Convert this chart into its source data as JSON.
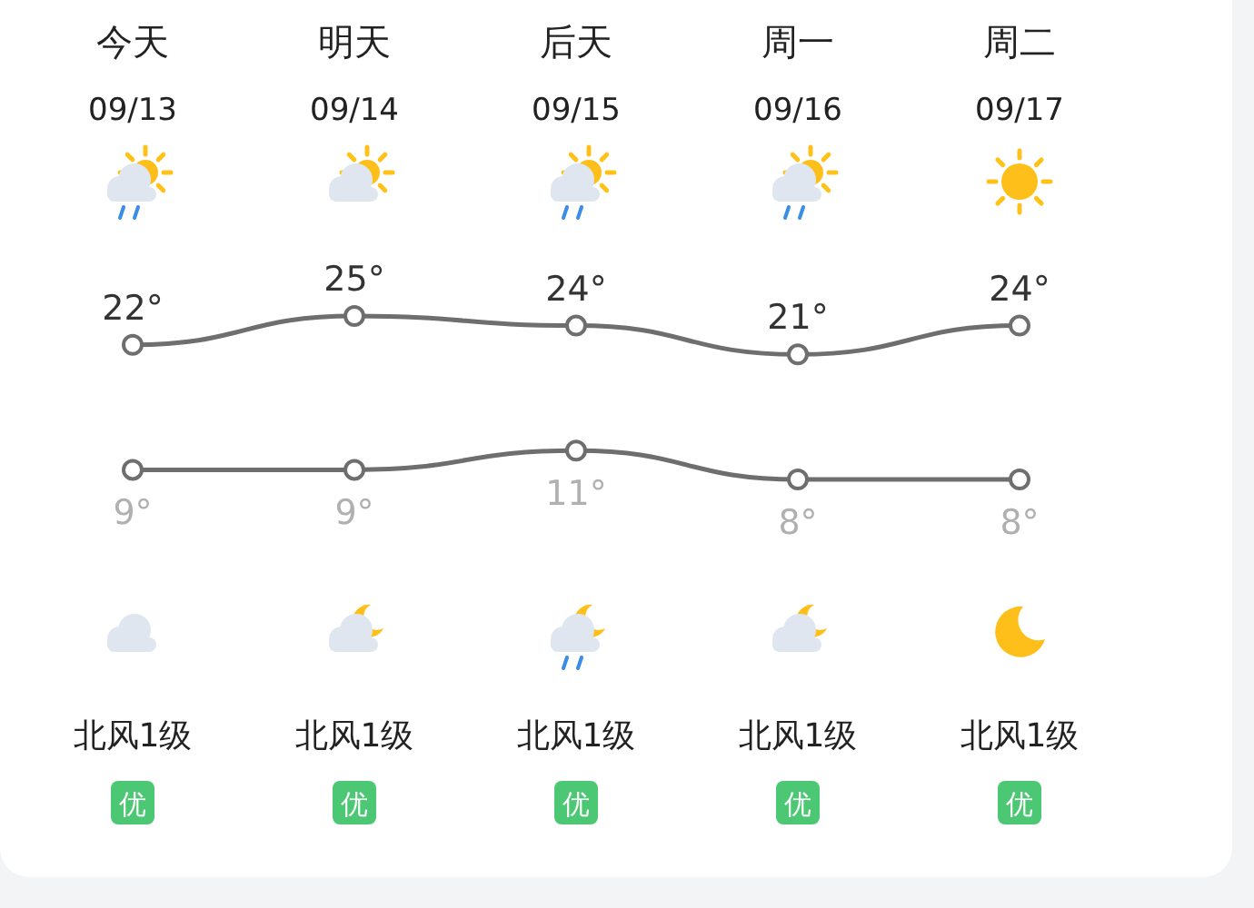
{
  "chart_data": {
    "type": "line",
    "marker": "circle",
    "categories": [
      "今天\n09/13",
      "明天\n09/14",
      "后天\n09/15",
      "周一\n09/16",
      "周二\n09/17"
    ],
    "series": [
      {
        "color": "#6e6e6e",
        "values": [
          22,
          25,
          24,
          21,
          24
        ],
        "value_labels": [
          "22°",
          "25°",
          "24°",
          "21°",
          "24°"
        ]
      },
      {
        "color": "#6e6e6e",
        "values": [
          9,
          9,
          11,
          8,
          8
        ],
        "value_labels": [
          "9°",
          "9°",
          "11°",
          "8°",
          "8°"
        ]
      }
    ],
    "annotations": [
      "北风1级",
      "北风1级",
      "北风1级",
      "北风1级",
      "北风1级",
      "优",
      "优",
      "优",
      "优",
      "优"
    ]
  }
}
